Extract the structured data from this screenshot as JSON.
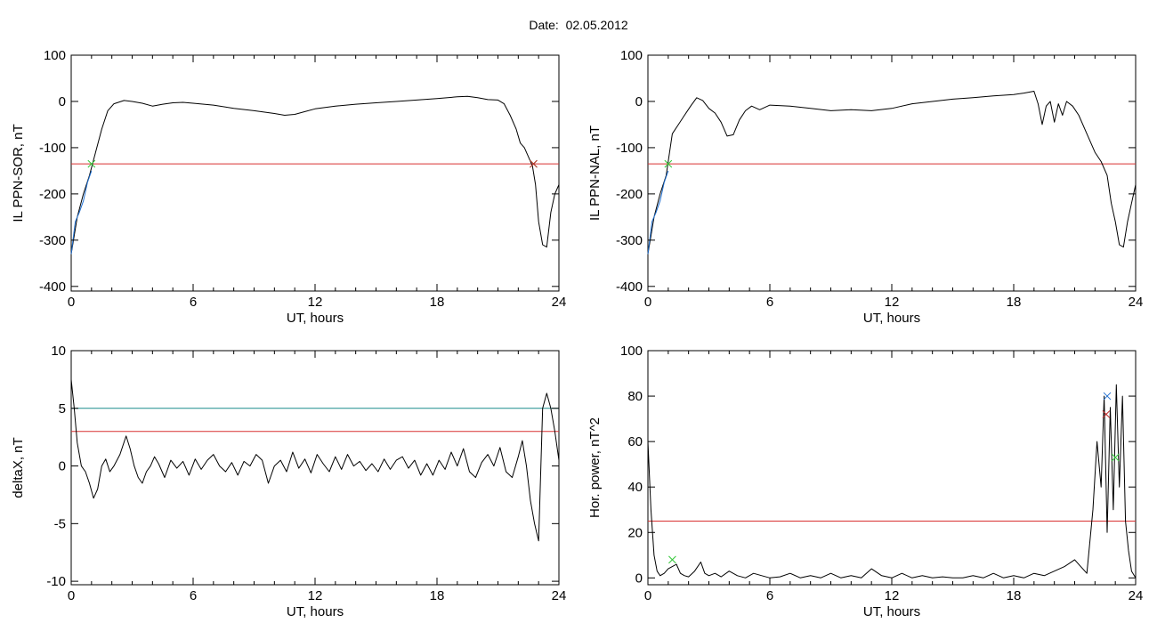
{
  "figure": {
    "title": "Date:  02.05.2012"
  },
  "chart_data": [
    {
      "type": "line",
      "title": "",
      "xlabel": "UT, hours",
      "ylabel": "IL PPN-SOR, nT",
      "xlim": [
        0,
        24
      ],
      "ylim": [
        -410,
        100
      ],
      "xticks": [
        0,
        6,
        12,
        18,
        24
      ],
      "yticks": [
        100,
        0,
        -100,
        -200,
        -300,
        -400
      ],
      "grid": false,
      "series": [
        {
          "color": "#000000",
          "x": [
            0,
            0.3,
            0.6,
            0.9,
            1.2,
            1.5,
            1.8,
            2.1,
            2.6,
            3.0,
            3.5,
            4.0,
            4.5,
            5.0,
            5.5,
            6.0,
            7.0,
            8.0,
            9.0,
            10.0,
            10.5,
            11.0,
            11.5,
            12.0,
            13.0,
            14.0,
            15.0,
            16.0,
            17.0,
            18.0,
            19.0,
            19.5,
            20.0,
            20.5,
            21.0,
            21.3,
            21.6,
            21.9,
            22.1,
            22.3,
            22.5,
            22.7,
            22.85,
            23.0,
            23.2,
            23.4,
            23.6,
            23.8,
            24.0
          ],
          "y": [
            -330,
            -250,
            -200,
            -160,
            -110,
            -60,
            -20,
            -5,
            2,
            0,
            -4,
            -10,
            -6,
            -3,
            -2,
            -4,
            -8,
            -15,
            -20,
            -26,
            -30,
            -28,
            -22,
            -16,
            -10,
            -6,
            -3,
            0,
            3,
            6,
            10,
            11,
            8,
            4,
            3,
            -5,
            -30,
            -60,
            -90,
            -100,
            -120,
            -140,
            -180,
            -260,
            -310,
            -315,
            -240,
            -200,
            -180
          ]
        },
        {
          "color": "#1f6fd0",
          "x": [
            0,
            0.2,
            0.4,
            0.6,
            0.8,
            1.0
          ],
          "y": [
            -330,
            -260,
            -240,
            -215,
            -175,
            -150
          ]
        }
      ],
      "hlines": [
        {
          "y": -135,
          "color": "#d93030"
        }
      ],
      "markers": [
        {
          "x": 1.0,
          "y": -135,
          "color": "#35c83a"
        },
        {
          "x": 22.75,
          "y": -135,
          "color": "#35c83a"
        },
        {
          "x": 22.75,
          "y": -135,
          "color": "#c03030"
        }
      ]
    },
    {
      "type": "line",
      "title": "",
      "xlabel": "UT, hours",
      "ylabel": "IL PPN-NAL, nT",
      "xlim": [
        0,
        24
      ],
      "ylim": [
        -410,
        100
      ],
      "xticks": [
        0,
        6,
        12,
        18,
        24
      ],
      "yticks": [
        100,
        0,
        -100,
        -200,
        -300,
        -400
      ],
      "grid": false,
      "series": [
        {
          "color": "#000000",
          "x": [
            0,
            0.3,
            0.6,
            0.9,
            1.2,
            1.5,
            1.8,
            2.1,
            2.4,
            2.7,
            3.0,
            3.3,
            3.6,
            3.9,
            4.2,
            4.5,
            4.8,
            5.1,
            5.5,
            6.0,
            7.0,
            8.0,
            9.0,
            10.0,
            11.0,
            12.0,
            13.0,
            14.0,
            15.0,
            16.0,
            17.0,
            18.0,
            18.5,
            19.0,
            19.2,
            19.4,
            19.6,
            19.8,
            20.0,
            20.2,
            20.4,
            20.6,
            20.9,
            21.2,
            21.6,
            22.0,
            22.3,
            22.6,
            22.8,
            23.0,
            23.2,
            23.4,
            23.6,
            23.8,
            24.0
          ],
          "y": [
            -330,
            -250,
            -200,
            -160,
            -70,
            -50,
            -30,
            -10,
            8,
            2,
            -15,
            -25,
            -45,
            -75,
            -72,
            -40,
            -20,
            -10,
            -18,
            -8,
            -10,
            -15,
            -20,
            -18,
            -20,
            -15,
            -5,
            0,
            5,
            8,
            12,
            15,
            18,
            22,
            -5,
            -50,
            -10,
            0,
            -45,
            -5,
            -30,
            0,
            -10,
            -30,
            -70,
            -110,
            -130,
            -160,
            -220,
            -260,
            -310,
            -315,
            -260,
            -220,
            -180
          ]
        },
        {
          "color": "#1f6fd0",
          "x": [
            0,
            0.2,
            0.4,
            0.6,
            0.8,
            1.0
          ],
          "y": [
            -330,
            -260,
            -240,
            -215,
            -175,
            -150
          ]
        }
      ],
      "hlines": [
        {
          "y": -135,
          "color": "#d93030"
        }
      ],
      "markers": [
        {
          "x": 1.0,
          "y": -135,
          "color": "#35c83a"
        }
      ]
    },
    {
      "type": "line",
      "title": "",
      "xlabel": "UT, hours",
      "ylabel": "deltaX, nT",
      "xlim": [
        0,
        24
      ],
      "ylim": [
        -10.3,
        10
      ],
      "xticks": [
        0,
        6,
        12,
        18,
        24
      ],
      "yticks": [
        10,
        5,
        0,
        -5,
        -10
      ],
      "grid": false,
      "series": [
        {
          "color": "#000000",
          "x": [
            0,
            0.15,
            0.3,
            0.5,
            0.7,
            0.9,
            1.1,
            1.3,
            1.5,
            1.7,
            1.9,
            2.1,
            2.4,
            2.7,
            2.9,
            3.1,
            3.3,
            3.5,
            3.7,
            3.9,
            4.1,
            4.3,
            4.6,
            4.9,
            5.2,
            5.5,
            5.8,
            6.1,
            6.4,
            6.7,
            7.0,
            7.3,
            7.6,
            7.9,
            8.2,
            8.5,
            8.8,
            9.1,
            9.4,
            9.7,
            10.0,
            10.3,
            10.6,
            10.9,
            11.2,
            11.5,
            11.8,
            12.1,
            12.4,
            12.7,
            13.0,
            13.3,
            13.6,
            13.9,
            14.2,
            14.5,
            14.8,
            15.1,
            15.4,
            15.7,
            16.0,
            16.3,
            16.6,
            16.9,
            17.2,
            17.5,
            17.8,
            18.1,
            18.4,
            18.7,
            19.0,
            19.3,
            19.6,
            19.9,
            20.2,
            20.5,
            20.8,
            21.1,
            21.4,
            21.7,
            22.0,
            22.2,
            22.4,
            22.6,
            22.8,
            23.0,
            23.2,
            23.4,
            23.6,
            23.8,
            24.0
          ],
          "y": [
            7.5,
            5,
            2,
            0,
            -0.5,
            -1.5,
            -2.8,
            -2,
            0,
            0.6,
            -0.5,
            0,
            1,
            2.6,
            1.5,
            0,
            -1,
            -1.5,
            -0.5,
            0,
            0.8,
            0.2,
            -1,
            0.5,
            -0.2,
            0.4,
            -0.8,
            0.6,
            -0.3,
            0.5,
            1,
            0,
            -0.5,
            0.3,
            -0.8,
            0.4,
            0,
            1,
            0.5,
            -1.5,
            0,
            0.5,
            -0.5,
            1.2,
            -0.2,
            0.6,
            -0.6,
            1,
            0.2,
            -0.5,
            0.8,
            -0.3,
            1,
            0,
            0.4,
            -0.4,
            0.2,
            -0.5,
            0.6,
            -0.3,
            0.5,
            0.8,
            -0.2,
            0.5,
            -0.8,
            0.2,
            -0.8,
            0.5,
            -0.3,
            1.2,
            0,
            1.5,
            -0.5,
            -1,
            0.3,
            1,
            0,
            1.6,
            -0.5,
            -1,
            0.8,
            2.2,
            0,
            -3,
            -5,
            -6.5,
            5,
            6.3,
            5,
            3,
            0.5
          ]
        }
      ],
      "hlines": [
        {
          "y": 5,
          "color": "#1a8c8c"
        },
        {
          "y": 3,
          "color": "#d93030"
        }
      ],
      "markers": []
    },
    {
      "type": "line",
      "title": "",
      "xlabel": "UT, hours",
      "ylabel": "Hor. power, nT^2",
      "xlim": [
        0,
        24
      ],
      "ylim": [
        -3,
        100
      ],
      "xticks": [
        0,
        6,
        12,
        18,
        24
      ],
      "yticks": [
        100,
        80,
        60,
        40,
        20,
        0
      ],
      "grid": false,
      "series": [
        {
          "color": "#000000",
          "x": [
            0,
            0.15,
            0.3,
            0.45,
            0.6,
            0.8,
            1.0,
            1.2,
            1.4,
            1.6,
            1.8,
            2.0,
            2.3,
            2.6,
            2.8,
            3.0,
            3.3,
            3.6,
            4.0,
            4.4,
            4.8,
            5.2,
            5.6,
            6.0,
            6.5,
            7.0,
            7.5,
            8.0,
            8.5,
            9.0,
            9.5,
            10.0,
            10.5,
            11.0,
            11.5,
            12.0,
            12.5,
            13.0,
            13.5,
            14.0,
            14.5,
            15.0,
            15.5,
            16.0,
            16.5,
            17.0,
            17.5,
            18.0,
            18.5,
            19.0,
            19.5,
            20.0,
            20.5,
            21.0,
            21.3,
            21.6,
            21.9,
            22.1,
            22.3,
            22.45,
            22.6,
            22.75,
            22.9,
            23.05,
            23.2,
            23.35,
            23.5,
            23.65,
            23.8,
            24.0
          ],
          "y": [
            60,
            30,
            10,
            3,
            1,
            2,
            4,
            5,
            6,
            2,
            1,
            0.5,
            3,
            7,
            2,
            1,
            2,
            0.5,
            3,
            1,
            0,
            2,
            1,
            0,
            0.5,
            2,
            0,
            1,
            0,
            2,
            0,
            1,
            0,
            4,
            1,
            0,
            2,
            0,
            1,
            0,
            0.5,
            0,
            0,
            1,
            0,
            2,
            0,
            1,
            0,
            2,
            1,
            3,
            5,
            8,
            5,
            2,
            30,
            60,
            40,
            80,
            20,
            75,
            30,
            85,
            40,
            80,
            25,
            12,
            3,
            0
          ]
        }
      ],
      "hlines": [
        {
          "y": 25,
          "color": "#d93030"
        }
      ],
      "markers": [
        {
          "x": 1.2,
          "y": 8,
          "color": "#35c83a"
        },
        {
          "x": 22.6,
          "y": 80,
          "color": "#1f6fd0"
        },
        {
          "x": 22.55,
          "y": 72,
          "color": "#c03030"
        },
        {
          "x": 23.0,
          "y": 53,
          "color": "#35c83a"
        }
      ]
    }
  ]
}
